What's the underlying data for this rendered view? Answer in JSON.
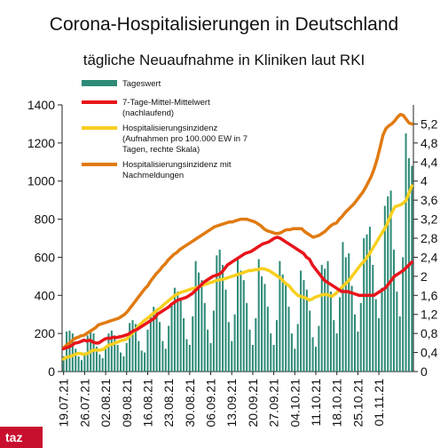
{
  "chart_data": {
    "type": "bar",
    "title": "Corona-Hospitalisierungen in Deutschland",
    "subtitle": "tägliche Neuaufnahme in Kliniken laut RKI",
    "x_ticks": [
      "19.07.21",
      "26.07.21",
      "02.08.21",
      "09.08.21",
      "16.08.21",
      "23.08.21",
      "30.08.21",
      "06.09.21",
      "13.09.21",
      "20.09.21",
      "27.09.21",
      "04.10.21",
      "11.10.21",
      "18.10.21",
      "25.10.21",
      "01.11.21"
    ],
    "y_left": {
      "ticks": [
        "0",
        "200",
        "400",
        "600",
        "800",
        "1000",
        "1200",
        "1400"
      ],
      "ylim": [
        0,
        1400
      ]
    },
    "y_right": {
      "ticks": [
        "0",
        "0,4",
        "0,8",
        "1,2",
        "1,6",
        "2",
        "2,4",
        "2,8",
        "3,2",
        "3,6",
        "4",
        "4,4",
        "4,8",
        "5,2"
      ],
      "ylim": [
        0,
        5.6
      ]
    },
    "legend": {
      "placement": "top-left"
    },
    "colors": {
      "bars": "#2e8b78",
      "mean": "#e8141b",
      "incidence": "#f7cf1e",
      "incidence_late": "#e07a10"
    },
    "series": [
      {
        "name": "Tageswert",
        "axis": "left",
        "kind": "bar",
        "values": [
          80,
          210,
          215,
          200,
          120,
          80,
          60,
          100,
          190,
          210,
          200,
          130,
          90,
          70,
          120,
          200,
          215,
          190,
          140,
          100,
          80,
          150,
          255,
          270,
          250,
          160,
          110,
          100,
          220,
          290,
          340,
          330,
          260,
          160,
          120,
          240,
          350,
          440,
          420,
          380,
          280,
          170,
          140,
          290,
          580,
          520,
          480,
          360,
          220,
          150,
          320,
          610,
          640,
          560,
          430,
          260,
          160,
          300,
          600,
          530,
          480,
          360,
          220,
          140,
          280,
          590,
          500,
          460,
          340,
          200,
          140,
          270,
          580,
          510,
          460,
          340,
          200,
          120,
          250,
          530,
          480,
          430,
          320,
          180,
          130,
          240,
          560,
          540,
          580,
          420,
          270,
          200,
          390,
          680,
          600,
          620,
          450,
          300,
          210,
          360,
          700,
          720,
          760,
          560,
          380,
          280,
          440,
          870,
          920,
          950,
          640,
          420,
          290,
          600,
          1250,
          1120,
          1080
        ]
      },
      {
        "name": "7-Tage-Mittel-Mittelwert (nachlaufend)",
        "axis": "left",
        "kind": "line",
        "values": [
          120,
          125,
          130,
          140,
          150,
          152,
          158,
          165,
          160,
          165,
          155,
          150,
          150,
          160,
          170,
          175,
          175,
          180,
          178,
          182,
          185,
          190,
          195,
          205,
          215,
          220,
          230,
          240,
          250,
          260,
          270,
          280,
          300,
          310,
          320,
          330,
          340,
          355,
          365,
          375,
          380,
          385,
          390,
          400,
          410,
          425,
          440,
          455,
          470,
          480,
          490,
          500,
          505,
          510,
          520,
          540,
          560,
          570,
          580,
          590,
          600,
          610,
          620,
          625,
          630,
          640,
          650,
          660,
          670,
          675,
          680,
          690,
          700,
          705,
          700,
          690,
          680,
          670,
          660,
          650,
          640,
          630,
          620,
          600,
          590,
          560,
          540,
          520,
          500,
          480,
          470,
          460,
          450,
          440,
          430,
          420,
          420,
          420,
          415,
          410,
          405,
          400,
          400,
          400,
          400,
          400,
          400,
          410,
          420,
          430,
          440,
          460,
          480,
          500,
          510,
          520,
          530,
          545,
          560,
          575
        ]
      },
      {
        "name": "Hospitalisierungsinzidenz (Aufnahmen pro 100.000 EW in 7 Tagen, rechte Skala)",
        "axis": "right",
        "kind": "line",
        "values": [
          0.26,
          0.3,
          0.31,
          0.33,
          0.36,
          0.38,
          0.38,
          0.36,
          0.37,
          0.4,
          0.44,
          0.45,
          0.45,
          0.45,
          0.47,
          0.52,
          0.56,
          0.57,
          0.6,
          0.62,
          0.65,
          0.66,
          0.68,
          0.74,
          0.8,
          0.86,
          0.94,
          1.0,
          1.06,
          1.1,
          1.15,
          1.2,
          1.25,
          1.3,
          1.34,
          1.4,
          1.45,
          1.5,
          1.55,
          1.6,
          1.63,
          1.66,
          1.68,
          1.7,
          1.72,
          1.74,
          1.75,
          1.77,
          1.8,
          1.82,
          1.84,
          1.86,
          1.88,
          1.9,
          1.92,
          1.93,
          1.94,
          1.96,
          1.98,
          2.0,
          2.02,
          2.04,
          2.06,
          2.08,
          2.1,
          2.12,
          2.12,
          2.14,
          2.14,
          2.16,
          2.16,
          2.14,
          2.12,
          2.08,
          2.04,
          2.0,
          1.96,
          1.9,
          1.84,
          1.8,
          1.72,
          1.66,
          1.6,
          1.58,
          1.56,
          1.54,
          1.5,
          1.52,
          1.56,
          1.58,
          1.6,
          1.62,
          1.62,
          1.6,
          1.58,
          1.62,
          1.68,
          1.74,
          1.8,
          1.86,
          1.92,
          2.0,
          2.08,
          2.16,
          2.24,
          2.3,
          2.38,
          2.46,
          2.56,
          2.66,
          2.76,
          2.86,
          2.96,
          3.06,
          3.2,
          3.34,
          3.46,
          3.48,
          3.5,
          3.54,
          3.6,
          3.76,
          3.9
        ]
      },
      {
        "name": "Hospitalisierungsinzidenz mit Nachmeldungen",
        "axis": "right",
        "kind": "line",
        "values": [
          0.5,
          0.55,
          0.6,
          0.65,
          0.7,
          0.72,
          0.75,
          0.76,
          0.8,
          0.84,
          0.88,
          0.92,
          0.98,
          1.0,
          1.02,
          1.04,
          1.06,
          1.08,
          1.1,
          1.12,
          1.16,
          1.2,
          1.26,
          1.34,
          1.42,
          1.5,
          1.58,
          1.66,
          1.74,
          1.8,
          1.9,
          1.98,
          2.06,
          2.12,
          2.2,
          2.26,
          2.34,
          2.4,
          2.46,
          2.5,
          2.56,
          2.6,
          2.64,
          2.68,
          2.72,
          2.76,
          2.8,
          2.84,
          2.88,
          2.92,
          2.96,
          3.0,
          3.04,
          3.06,
          3.08,
          3.1,
          3.12,
          3.14,
          3.14,
          3.16,
          3.18,
          3.2,
          3.2,
          3.2,
          3.18,
          3.16,
          3.14,
          3.1,
          3.06,
          3.0,
          2.96,
          2.94,
          2.92,
          2.9,
          2.9,
          2.92,
          2.96,
          2.98,
          2.98,
          3.0,
          3.0,
          3.0,
          3.0,
          2.94,
          2.9,
          2.86,
          2.82,
          2.84,
          2.86,
          2.9,
          2.94,
          3.0,
          3.06,
          3.1,
          3.12,
          3.2,
          3.26,
          3.34,
          3.4,
          3.46,
          3.52,
          3.6,
          3.68,
          3.76,
          3.86,
          3.98,
          4.1,
          4.26,
          4.46,
          4.7,
          4.96,
          5.1,
          5.16,
          5.2,
          5.26,
          5.34,
          5.4,
          5.38,
          5.3,
          5.22,
          5.2
        ]
      }
    ]
  },
  "legend_labels": {
    "tageswert": "Tageswert",
    "mean_line1": "7-Tage-Mittel-Mittelwert",
    "mean_line2": "(nachlaufend)",
    "inc_line1": "Hospitalisierungsinzidenz",
    "inc_line2": "(Aufnahmen pro 100.000 EW in 7",
    "inc_line3": "Tagen, rechte Skala)",
    "late_line1": "Hospitalisierungsinzidenz mit",
    "late_line2": "Nachmeldungen"
  },
  "logo_text": "taz"
}
